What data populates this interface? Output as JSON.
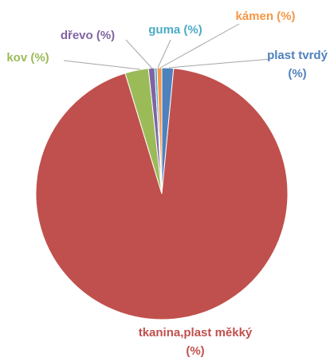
{
  "chart_data": {
    "type": "pie",
    "categories": [
      "plast tvrdý (%)",
      "tkanina,plast měkký (%)",
      "kov (%)",
      "dřevo (%)",
      "guma (%)",
      "kámen (%)"
    ],
    "values": [
      1.5,
      93.8,
      3,
      0.8,
      0.3,
      0.6
    ],
    "colors": [
      "#4f81bd",
      "#c0504d",
      "#9bbb59",
      "#8064a2",
      "#4bacc6",
      "#f79646"
    ]
  }
}
